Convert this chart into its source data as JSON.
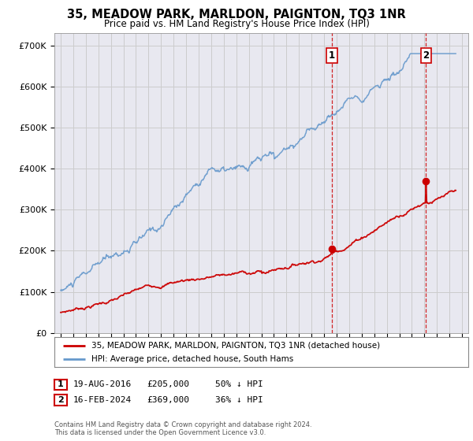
{
  "title": "35, MEADOW PARK, MARLDON, PAIGNTON, TQ3 1NR",
  "subtitle": "Price paid vs. HM Land Registry's House Price Index (HPI)",
  "legend_line1": "35, MEADOW PARK, MARLDON, PAIGNTON, TQ3 1NR (detached house)",
  "legend_line2": "HPI: Average price, detached house, South Hams",
  "sale1_label": "1",
  "sale1_date": "19-AUG-2016",
  "sale1_price": "£205,000",
  "sale1_hpi": "50% ↓ HPI",
  "sale1_x": 2016.63,
  "sale1_y": 205000,
  "sale2_label": "2",
  "sale2_date": "16-FEB-2024",
  "sale2_price": "£369,000",
  "sale2_hpi": "36% ↓ HPI",
  "sale2_x": 2024.12,
  "sale2_y": 369000,
  "vline1_x": 2016.63,
  "vline2_x": 2024.12,
  "xlim": [
    1994.5,
    2027.5
  ],
  "ylim": [
    0,
    730000
  ],
  "yticks": [
    0,
    100000,
    200000,
    300000,
    400000,
    500000,
    600000,
    700000
  ],
  "ytick_labels": [
    "£0",
    "£100K",
    "£200K",
    "£300K",
    "£400K",
    "£500K",
    "£600K",
    "£700K"
  ],
  "xticks": [
    1995,
    1996,
    1997,
    1998,
    1999,
    2000,
    2001,
    2002,
    2003,
    2004,
    2005,
    2006,
    2007,
    2008,
    2009,
    2010,
    2011,
    2012,
    2013,
    2014,
    2015,
    2016,
    2017,
    2018,
    2019,
    2020,
    2021,
    2022,
    2023,
    2024,
    2025,
    2026,
    2027
  ],
  "red_color": "#cc0000",
  "blue_color": "#6699cc",
  "vline_color": "#cc0000",
  "grid_color": "#cccccc",
  "bg_color": "#e8e8f0",
  "plot_border_color": "#aaaaaa",
  "footnote": "Contains HM Land Registry data © Crown copyright and database right 2024.\nThis data is licensed under the Open Government Licence v3.0."
}
